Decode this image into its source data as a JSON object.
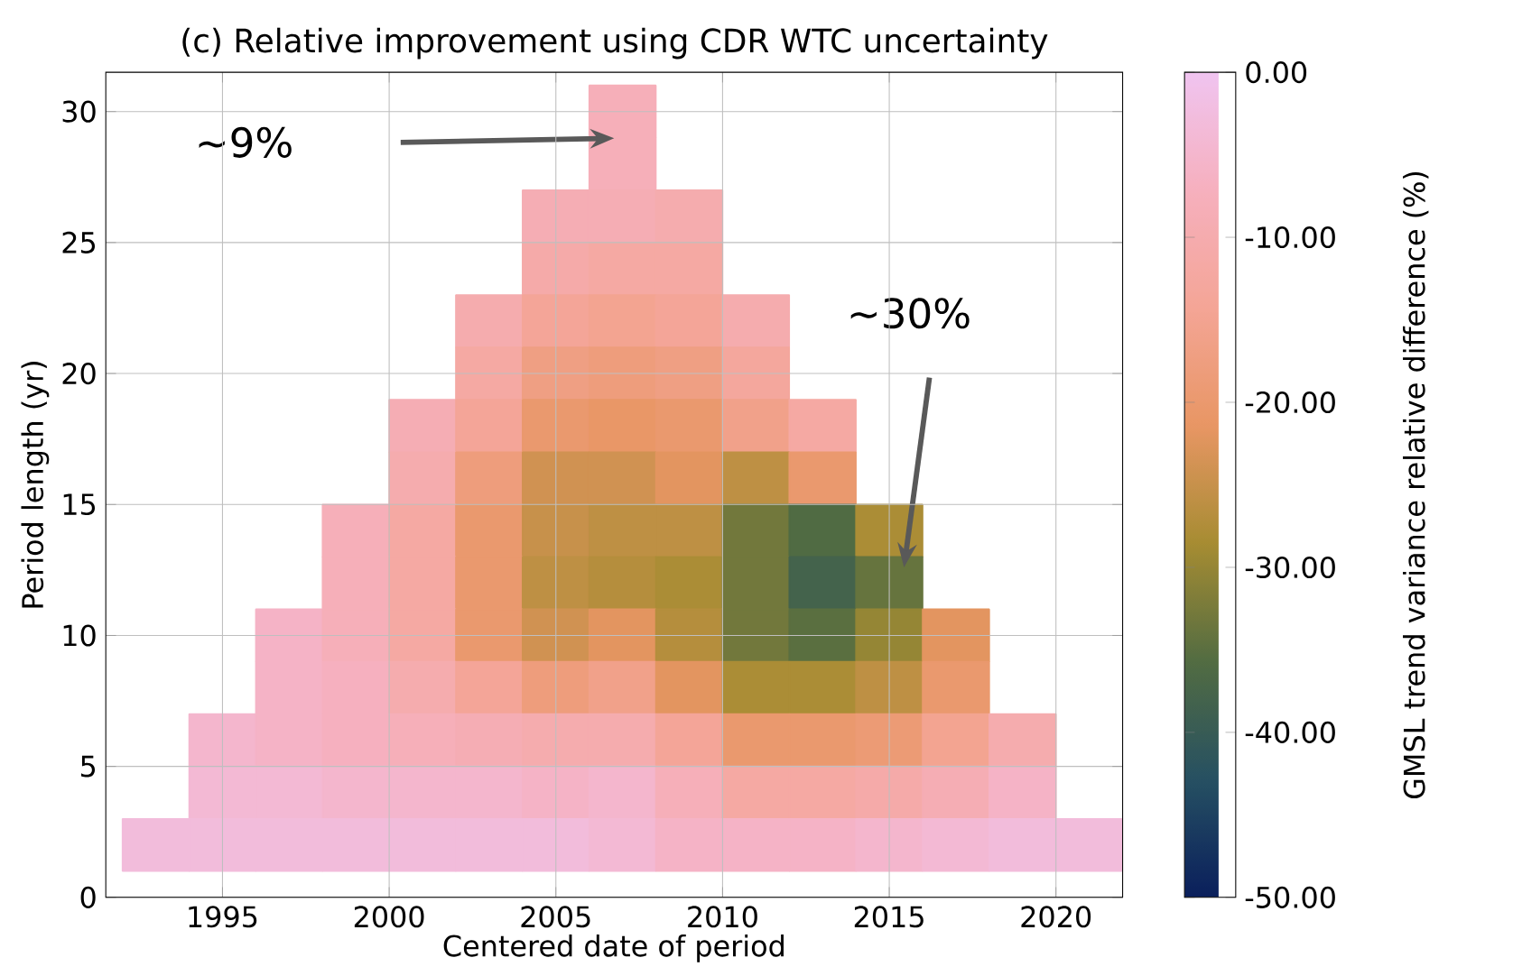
{
  "chart_data": {
    "type": "heatmap",
    "title": "(c) Relative improvement using CDR WTC uncertainty",
    "xlabel": "Centered date of period",
    "ylabel": "Period length (yr)",
    "clabel": "GMSL trend variance relative difference (%)",
    "x": [
      1993,
      1995,
      1997,
      1999,
      2001,
      2003,
      2005,
      2007,
      2009,
      2011,
      2013,
      2015,
      2017,
      2019,
      2021
    ],
    "y": [
      30,
      28,
      26,
      24,
      22,
      20,
      18,
      16,
      14,
      12,
      10,
      8,
      6,
      4,
      2
    ],
    "cells": [
      [
        null,
        null,
        null,
        null,
        null,
        null,
        null,
        -8,
        null,
        null,
        null,
        null,
        null,
        null,
        null
      ],
      [
        null,
        null,
        null,
        null,
        null,
        null,
        null,
        -8,
        null,
        null,
        null,
        null,
        null,
        null,
        null
      ],
      [
        null,
        null,
        null,
        null,
        null,
        null,
        -9,
        -9,
        -10,
        null,
        null,
        null,
        null,
        null,
        null
      ],
      [
        null,
        null,
        null,
        null,
        null,
        null,
        -11,
        -12,
        -12,
        null,
        null,
        null,
        null,
        null,
        null
      ],
      [
        null,
        null,
        null,
        null,
        null,
        -10,
        -14,
        -15,
        -14,
        -10,
        null,
        null,
        null,
        null,
        null
      ],
      [
        null,
        null,
        null,
        null,
        null,
        -12,
        -17,
        -18,
        -17,
        -13,
        null,
        null,
        null,
        null,
        null
      ],
      [
        null,
        null,
        null,
        null,
        -9,
        -14,
        -20,
        -21,
        -20,
        -16,
        -12,
        null,
        null,
        null,
        null
      ],
      [
        null,
        null,
        null,
        null,
        -10,
        -18,
        -24,
        -24,
        -22,
        -26,
        -20,
        null,
        null,
        null,
        null
      ],
      [
        null,
        null,
        null,
        -8,
        -12,
        -20,
        -25,
        -26,
        -26,
        -33,
        -36,
        -28,
        null,
        null,
        null
      ],
      [
        null,
        null,
        null,
        -8,
        -12,
        -20,
        -26,
        -27,
        -28,
        -33,
        -38,
        -34,
        null,
        null,
        null
      ],
      [
        null,
        null,
        -6,
        -8,
        -12,
        -20,
        -24,
        -22,
        -27,
        -33,
        -35,
        -30,
        -22,
        null,
        null
      ],
      [
        null,
        null,
        -6,
        -7,
        -10,
        -14,
        -18,
        -16,
        -22,
        -28,
        -28,
        -26,
        -20,
        null,
        null
      ],
      [
        null,
        -5,
        -6,
        -7,
        -8,
        -9,
        -10,
        -10,
        -14,
        -20,
        -20,
        -19,
        -15,
        -10,
        null
      ],
      [
        null,
        -4,
        -4,
        -5,
        -5,
        -5,
        -6,
        -5,
        -8,
        -12,
        -12,
        -11,
        -9,
        -6,
        null
      ],
      [
        -3,
        -3,
        -3,
        -3,
        -3,
        -3,
        -3,
        -4,
        -6,
        -6,
        -6,
        -5,
        -4,
        -3,
        -3
      ]
    ],
    "xlim": [
      1991.5,
      2022
    ],
    "ylim": [
      0,
      31.5
    ],
    "xticks": [
      1995,
      2000,
      2005,
      2010,
      2015,
      2020
    ],
    "yticks": [
      0,
      5,
      10,
      15,
      20,
      25,
      30
    ],
    "clim": [
      -50,
      0
    ],
    "cticks": [
      {
        "value": -50,
        "label": "-50.00"
      },
      {
        "value": -40,
        "label": "-40.00"
      },
      {
        "value": -30,
        "label": "-30.00"
      },
      {
        "value": -20,
        "label": "-20.00"
      },
      {
        "value": -10,
        "label": "-10.00"
      },
      {
        "value": 0,
        "label": "0.00"
      }
    ],
    "grid": true,
    "annotations": [
      "~9%",
      "~30%"
    ]
  }
}
